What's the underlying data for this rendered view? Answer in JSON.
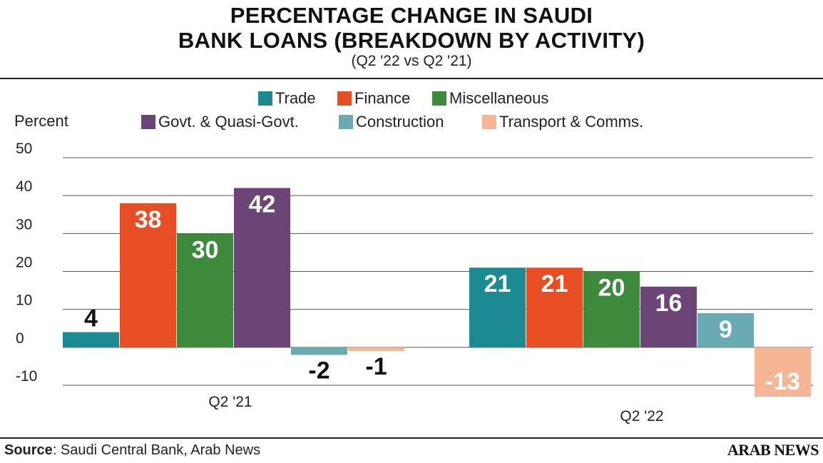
{
  "title_lines": [
    "PERCENTAGE CHANGE IN SAUDI",
    "BANK LOANS (BREAKDOWN BY ACTIVITY)"
  ],
  "subtitle": "(Q2 '22 vs Q2 '21)",
  "ylabel": "Percent",
  "source_label": "Source",
  "source_text": ": Saudi Central Bank, Arab News",
  "brand": "ARAB NEWS",
  "chart_data": {
    "type": "bar",
    "title": "PERCENTAGE CHANGE IN SAUDI BANK LOANS (BREAKDOWN BY ACTIVITY)",
    "subtitle": "(Q2 '22 vs Q2 '21)",
    "ylabel": "Percent",
    "xlabel": "",
    "ylim": [
      -10,
      50
    ],
    "yticks": [
      50,
      40,
      30,
      20,
      10,
      0,
      -10
    ],
    "grid": true,
    "legend_position": "top",
    "categories": [
      "Q2 '21",
      "Q2 '22"
    ],
    "series": [
      {
        "name": "Trade",
        "color": "#1b8a91",
        "values": [
          4,
          21
        ]
      },
      {
        "name": "Finance",
        "color": "#e84e24",
        "values": [
          38,
          21
        ]
      },
      {
        "name": "Miscellaneous",
        "color": "#3d8a3c",
        "values": [
          30,
          20
        ]
      },
      {
        "name": "Govt. & Quasi-Govt.",
        "color": "#6a4575",
        "values": [
          42,
          16
        ]
      },
      {
        "name": "Construction",
        "color": "#6aaab2",
        "values": [
          -2,
          9
        ]
      },
      {
        "name": "Transport & Comms.",
        "color": "#f6b594",
        "values": [
          -1,
          -13
        ]
      }
    ],
    "data_labels": [
      [
        "4",
        "38",
        "30",
        "42",
        "-2",
        "-1"
      ],
      [
        "21",
        "21",
        "20",
        "16",
        "9",
        "-13"
      ]
    ]
  }
}
